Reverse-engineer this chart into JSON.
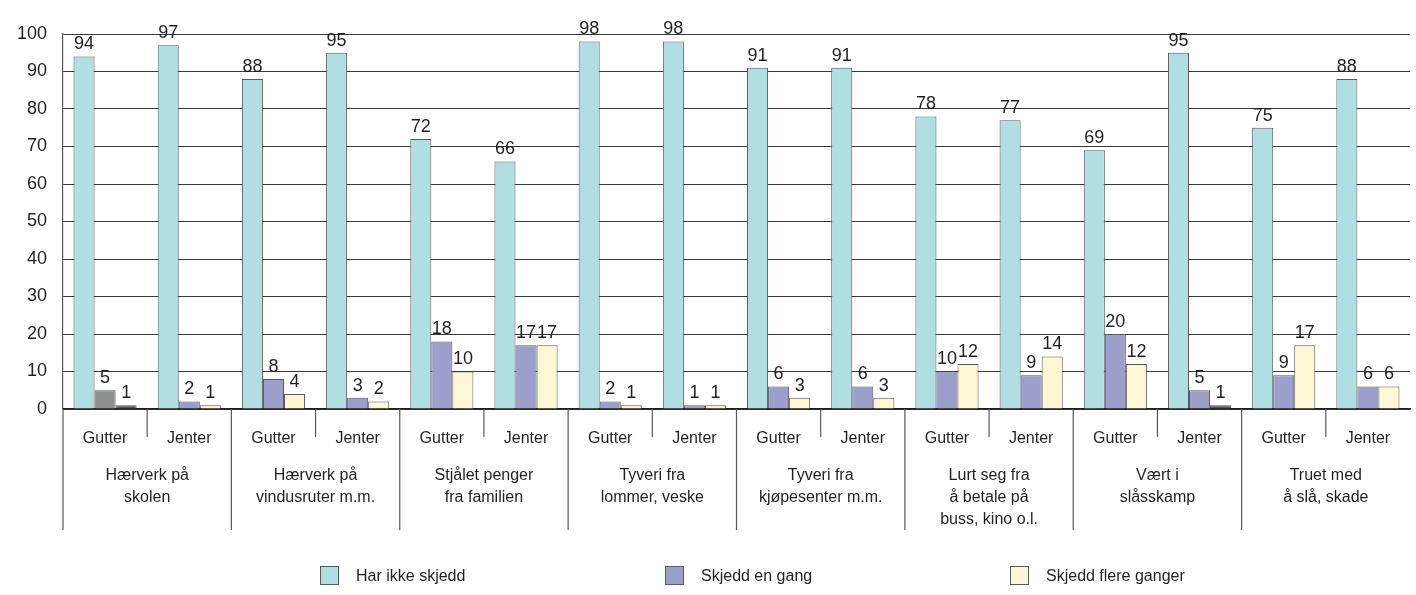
{
  "chart_data": {
    "type": "bar",
    "categories": [
      "Gutter",
      "Jenter",
      "Gutter",
      "Jenter",
      "Gutter",
      "Jenter",
      "Gutter",
      "Jenter",
      "Gutter",
      "Jenter",
      "Gutter",
      "Jenter",
      "Gutter",
      "Jenter",
      "Gutter",
      "Jenter"
    ],
    "series": [
      {
        "name": "Har ikke skjedd",
        "color": "#b0dfe3",
        "values": [
          94,
          97,
          88,
          95,
          72,
          66,
          98,
          98,
          91,
          91,
          78,
          77,
          69,
          95,
          75,
          88
        ]
      },
      {
        "name": "Skjedd en gang",
        "color": "#9c9fcc",
        "colors": [
          "#8e8f91",
          "#9c9fcc",
          "#9c9fcc",
          "#9c9fcc",
          "#9c9fcc",
          "#9c9fcc",
          "#9c9fcc",
          "#9c9fcc",
          "#9c9fcc",
          "#9c9fcc",
          "#9c9fcc",
          "#9c9fcc",
          "#9c9fcc",
          "#9c9fcc",
          "#9c9fcc",
          "#9c9fcc"
        ],
        "values": [
          5,
          2,
          8,
          3,
          18,
          17,
          2,
          1,
          6,
          6,
          10,
          9,
          20,
          5,
          9,
          6
        ]
      },
      {
        "name": "Skjedd flere ganger",
        "color": "#fdf8d4",
        "colors": [
          "#58595b",
          "#fdf8d4",
          "#fdf8d4",
          "#fdf8d4",
          "#fdf8d4",
          "#fdf8d4",
          "#fdf8d4",
          "#fdf8d4",
          "#fdf8d4",
          "#fdf8d4",
          "#fdf8d4",
          "#fdf8d4",
          "#fdf8d4",
          "#58595b",
          "#fdf8d4",
          "#fdf8d4"
        ],
        "values": [
          1,
          1,
          4,
          2,
          10,
          17,
          1,
          1,
          3,
          3,
          12,
          14,
          12,
          1,
          17,
          6
        ]
      }
    ],
    "annotations": [
      "Hærverk på\nskolen",
      "Hærverk på\nvindusruter m.m.",
      "Stjålet penger\nfra familien",
      "Tyveri fra\nlommer, veske",
      "Tyveri fra\nkjøpesenter m.m.",
      "Lurt seg fra\nå betale på\nbuss, kino o.l.",
      "Vært i\nslåsskamp",
      "Truet med\nå slå, skade"
    ],
    "ylim": [
      0,
      100
    ],
    "yticks": [
      0,
      10,
      20,
      30,
      40,
      50,
      60,
      70,
      80,
      90,
      100
    ],
    "grid": "y",
    "legend": "bottom",
    "data_labels": true
  }
}
